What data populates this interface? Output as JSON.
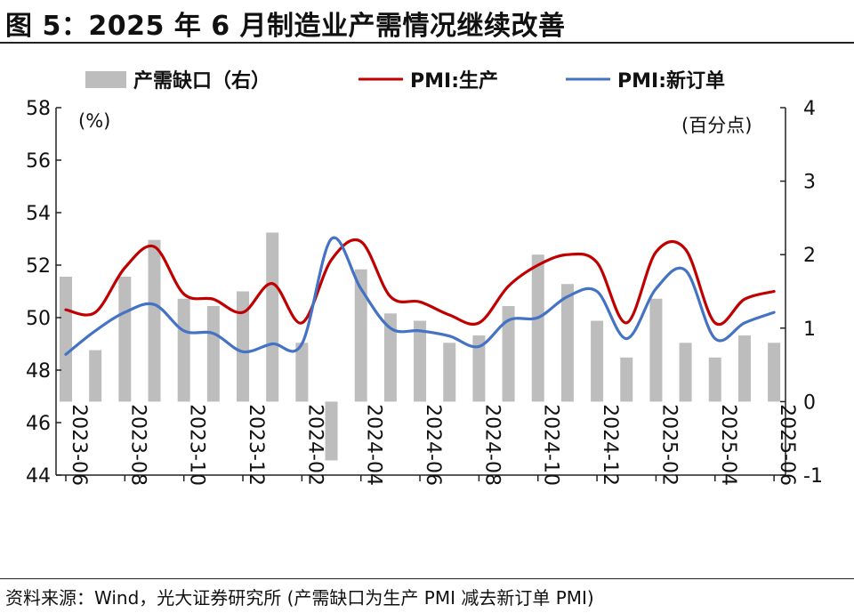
{
  "header": {
    "title": "图 5：2025 年 6 月制造业产需情况继续改善"
  },
  "footer": {
    "source": "资料来源：Wind，光大证券研究所    (产需缺口为生产 PMI 减去新订单 PMI)"
  },
  "colors": {
    "bar": "#bdbdbd",
    "production": "#c00000",
    "new_orders": "#4472c4"
  },
  "chart_data": {
    "type": "bar+line",
    "title": "2025 年 6 月制造业产需情况继续改善",
    "left_unit": "(%)",
    "right_unit": "(百分点)",
    "ylim_left": [
      44,
      58
    ],
    "yticks_left": [
      "58",
      "56",
      "54",
      "52",
      "50",
      "48",
      "46",
      "44"
    ],
    "ylim_right": [
      -1,
      4
    ],
    "yticks_right": [
      "4",
      "3",
      "2",
      "1",
      "0",
      "-1"
    ],
    "categories": [
      "2023-06",
      "2023-07",
      "2023-08",
      "2023-09",
      "2023-10",
      "2023-11",
      "2023-12",
      "2024-01",
      "2024-02",
      "2024-03",
      "2024-04",
      "2024-05",
      "2024-06",
      "2024-07",
      "2024-08",
      "2024-09",
      "2024-10",
      "2024-11",
      "2024-12",
      "2025-01",
      "2025-02",
      "2025-03",
      "2025-04",
      "2025-05",
      "2025-06"
    ],
    "xtick_labels": [
      "2023-06",
      "2023-08",
      "2023-10",
      "2023-12",
      "2024-02",
      "2024-04",
      "2024-06",
      "2024-08",
      "2024-10",
      "2024-12",
      "2025-02",
      "2025-04",
      "2025-06"
    ],
    "series": [
      {
        "name": "产需缺口（右）",
        "type": "bar",
        "axis": "right",
        "values": [
          1.7,
          0.7,
          1.7,
          2.2,
          1.4,
          1.3,
          1.5,
          2.3,
          0.8,
          -0.8,
          1.8,
          1.2,
          1.1,
          0.8,
          0.9,
          1.3,
          2.0,
          1.6,
          1.1,
          0.6,
          1.4,
          0.8,
          0.6,
          0.9,
          0.8
        ]
      },
      {
        "name": "PMI:生产",
        "type": "line",
        "axis": "left",
        "values": [
          50.3,
          50.2,
          51.9,
          52.7,
          50.9,
          50.7,
          50.2,
          51.3,
          49.8,
          52.2,
          52.9,
          50.8,
          50.6,
          50.1,
          49.8,
          51.2,
          52.0,
          52.4,
          52.1,
          49.8,
          52.5,
          52.6,
          49.8,
          50.7,
          51.0
        ]
      },
      {
        "name": "PMI:新订单",
        "type": "line",
        "axis": "left",
        "values": [
          48.6,
          49.5,
          50.2,
          50.5,
          49.5,
          49.4,
          48.7,
          49.0,
          49.0,
          53.0,
          51.1,
          49.6,
          49.5,
          49.3,
          48.9,
          49.9,
          50.0,
          50.8,
          51.0,
          49.2,
          51.1,
          51.8,
          49.2,
          49.8,
          50.2
        ]
      }
    ]
  }
}
